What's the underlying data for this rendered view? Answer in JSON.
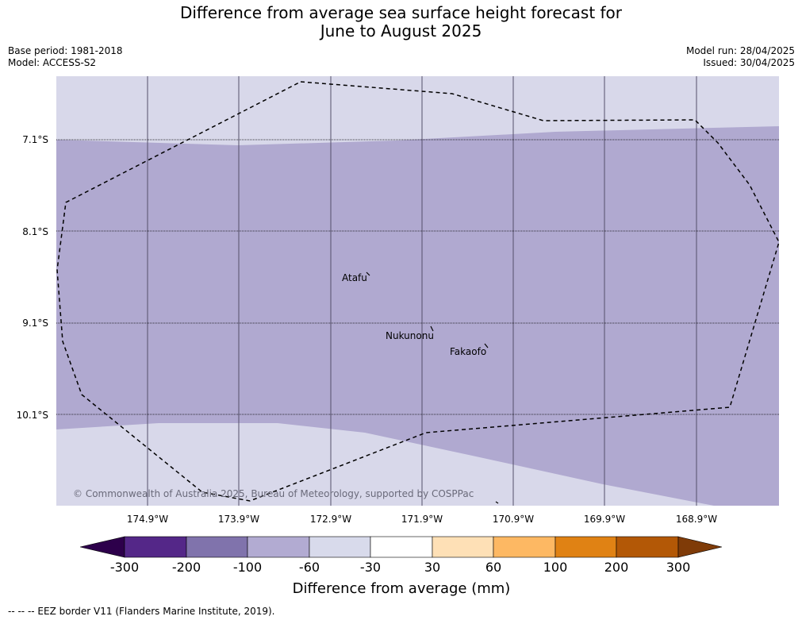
{
  "title": {
    "line1": "Difference from average sea surface height forecast for",
    "line2": "June to August 2025"
  },
  "meta_left": {
    "base_period": "Base period: 1981-2018",
    "model": "Model: ACCESS-S2"
  },
  "meta_right": {
    "model_run": "Model run: 28/04/2025",
    "issued": "Issued: 30/04/2025"
  },
  "map": {
    "lat_labels": [
      "7.1°S",
      "8.1°S",
      "9.1°S",
      "10.1°S"
    ],
    "lon_labels": [
      "174.9°W",
      "173.9°W",
      "172.9°W",
      "171.9°W",
      "170.9°W",
      "169.9°W",
      "168.9°W"
    ],
    "places": [
      "Atafu",
      "Nukunonu",
      "Fakaofo"
    ],
    "copyright": "© Commonwealth of Australia 2025, Bureau of Meteorology, supported by COSPPac",
    "colors": {
      "band_-100_-60": "#b0a9d0",
      "band_-60_-30": "#d8d8ea"
    }
  },
  "colorbar": {
    "label": "Difference from average (mm)",
    "ticks": [
      "-300",
      "-200",
      "-100",
      "-60",
      "-30",
      "30",
      "60",
      "100",
      "200",
      "300"
    ],
    "colors": [
      "#2d004b",
      "#542788",
      "#8073ac",
      "#b2abd2",
      "#d8daeb",
      "#ffffff",
      "#fee0b6",
      "#fdb863",
      "#e08214",
      "#b35806",
      "#7f3b08"
    ]
  },
  "footer": "--  --  -- EEZ border V11 (Flanders Marine Institute, 2019)."
}
